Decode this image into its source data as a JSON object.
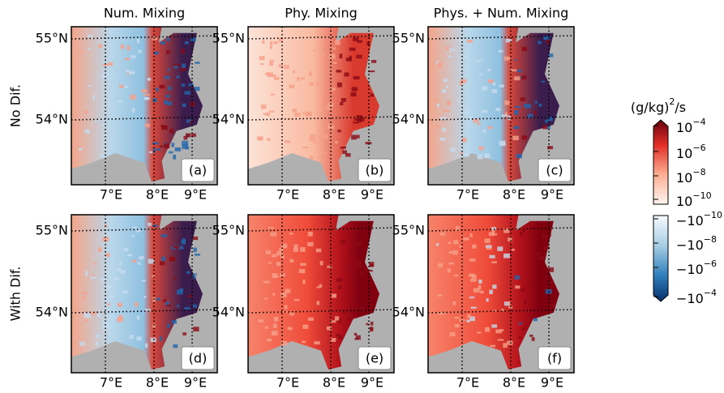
{
  "columns": [
    "Num. Mixing",
    "Phy. Mixing",
    "Phys. + Num. Mixing"
  ],
  "rows": [
    "No Dif.",
    "With Dif."
  ],
  "panels": [
    [
      "(a)",
      "(b)",
      "(c)"
    ],
    [
      "(d)",
      "(e)",
      "(f)"
    ]
  ],
  "lat_labels": [
    "55°N",
    "54°N"
  ],
  "lon_labels": [
    "7°E",
    "8°E",
    "9°E"
  ],
  "colorbar": {
    "title": {
      "base": "(g/kg)",
      "exp": "2",
      "tail": "/s"
    },
    "positive": [
      {
        "base": "10",
        "exp": "−4"
      },
      {
        "base": "10",
        "exp": "−6"
      },
      {
        "base": "10",
        "exp": "−8"
      },
      {
        "base": "10",
        "exp": "−10"
      }
    ],
    "negative": [
      {
        "base": "−10",
        "exp": "−10"
      },
      {
        "base": "−10",
        "exp": "−8"
      },
      {
        "base": "−10",
        "exp": "−6"
      },
      {
        "base": "−10",
        "exp": "−4"
      }
    ]
  }
}
